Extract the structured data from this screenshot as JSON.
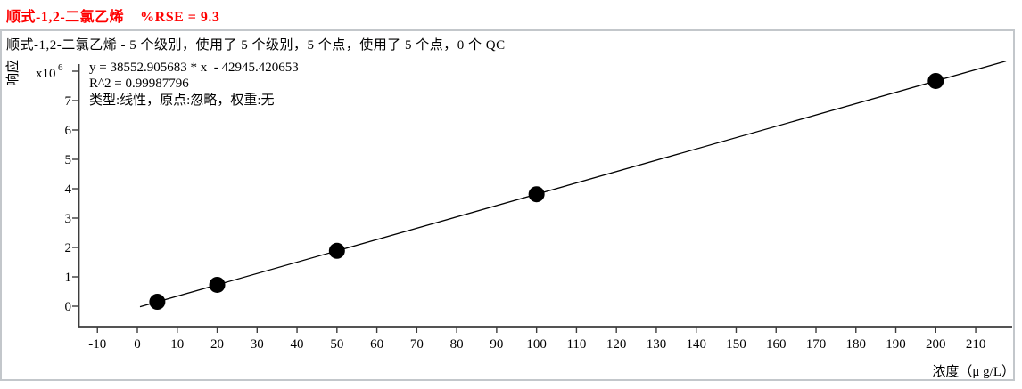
{
  "header": {
    "title": "顺式-1,2-二氯乙烯    %RSE = 9.3",
    "title_color": "#ff0000",
    "rse_value": 9.3,
    "subtitle": "顺式-1,2-二氯乙烯 - 5 个级别，使用了 5 个级别，5 个点，使用了 5 个点，0 个 QC"
  },
  "chart_data": {
    "type": "scatter",
    "series_name": "顺式-1,2-二氯乙烯",
    "xlabel": "浓度（μ g/L）",
    "ylabel": "响应",
    "y_scale": {
      "mantissa": "x10",
      "exponent": "6"
    },
    "x_ticks": [
      -10,
      0,
      10,
      20,
      30,
      40,
      50,
      60,
      70,
      80,
      90,
      100,
      110,
      120,
      130,
      140,
      150,
      160,
      170,
      180,
      190,
      200,
      210
    ],
    "y_ticks": [
      0,
      1,
      2,
      3,
      4,
      5,
      6,
      7
    ],
    "xlim": [
      -14.7,
      219.2
    ],
    "ylim": [
      0,
      8000000
    ],
    "grid": false,
    "legend": false,
    "points": {
      "x": [
        5,
        20,
        50,
        100,
        200
      ],
      "y": [
        149819,
        728113,
        1884700,
        3812345,
        7667636
      ]
    },
    "fit": {
      "slope": 38552.905683,
      "intercept": -42945.420653,
      "r_squared": 0.99987796,
      "equation_label": "y = 38552.905683 * x  - 42945.420653",
      "r2_label": "R^2 = 0.99987796",
      "model_label": "类型:线性，原点:忽略，权重:无"
    },
    "colors": {
      "point": "#000000",
      "line": "#000000",
      "title": "#ff0000",
      "panel_border": "#c3c7cb"
    }
  }
}
